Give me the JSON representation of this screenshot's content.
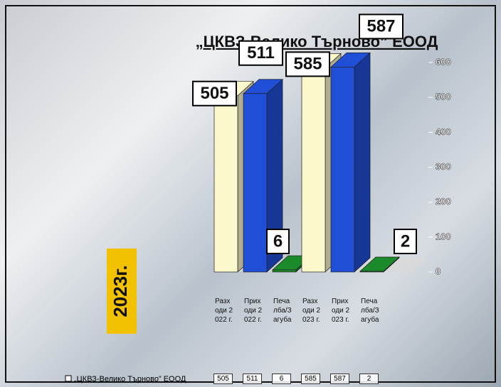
{
  "chart_data": {
    "type": "bar3d",
    "title": "„ЦКВЗ-Велико Търново” ЕООД",
    "side_label": "2023г.",
    "categories": [
      "Разходи 2022 г.",
      "Приходи 2022 г.",
      "Печалба/Загуба",
      "Разходи 2023 г.",
      "Приходи 2023 г.",
      "Печалба/Загуба"
    ],
    "series": [
      {
        "name": "„ЦКВЗ-Велико Търново” ЕООД",
        "values": [
          505,
          511,
          6,
          585,
          587,
          2
        ]
      }
    ],
    "colors": [
      "#fbf8cc",
      "#1f4fd6",
      "#1a8a2a",
      "#fbf8cc",
      "#1f4fd6",
      "#1a8a2a"
    ],
    "ylim": [
      0,
      600
    ],
    "yticks": [
      0,
      100,
      200,
      300,
      400,
      500,
      600
    ]
  }
}
